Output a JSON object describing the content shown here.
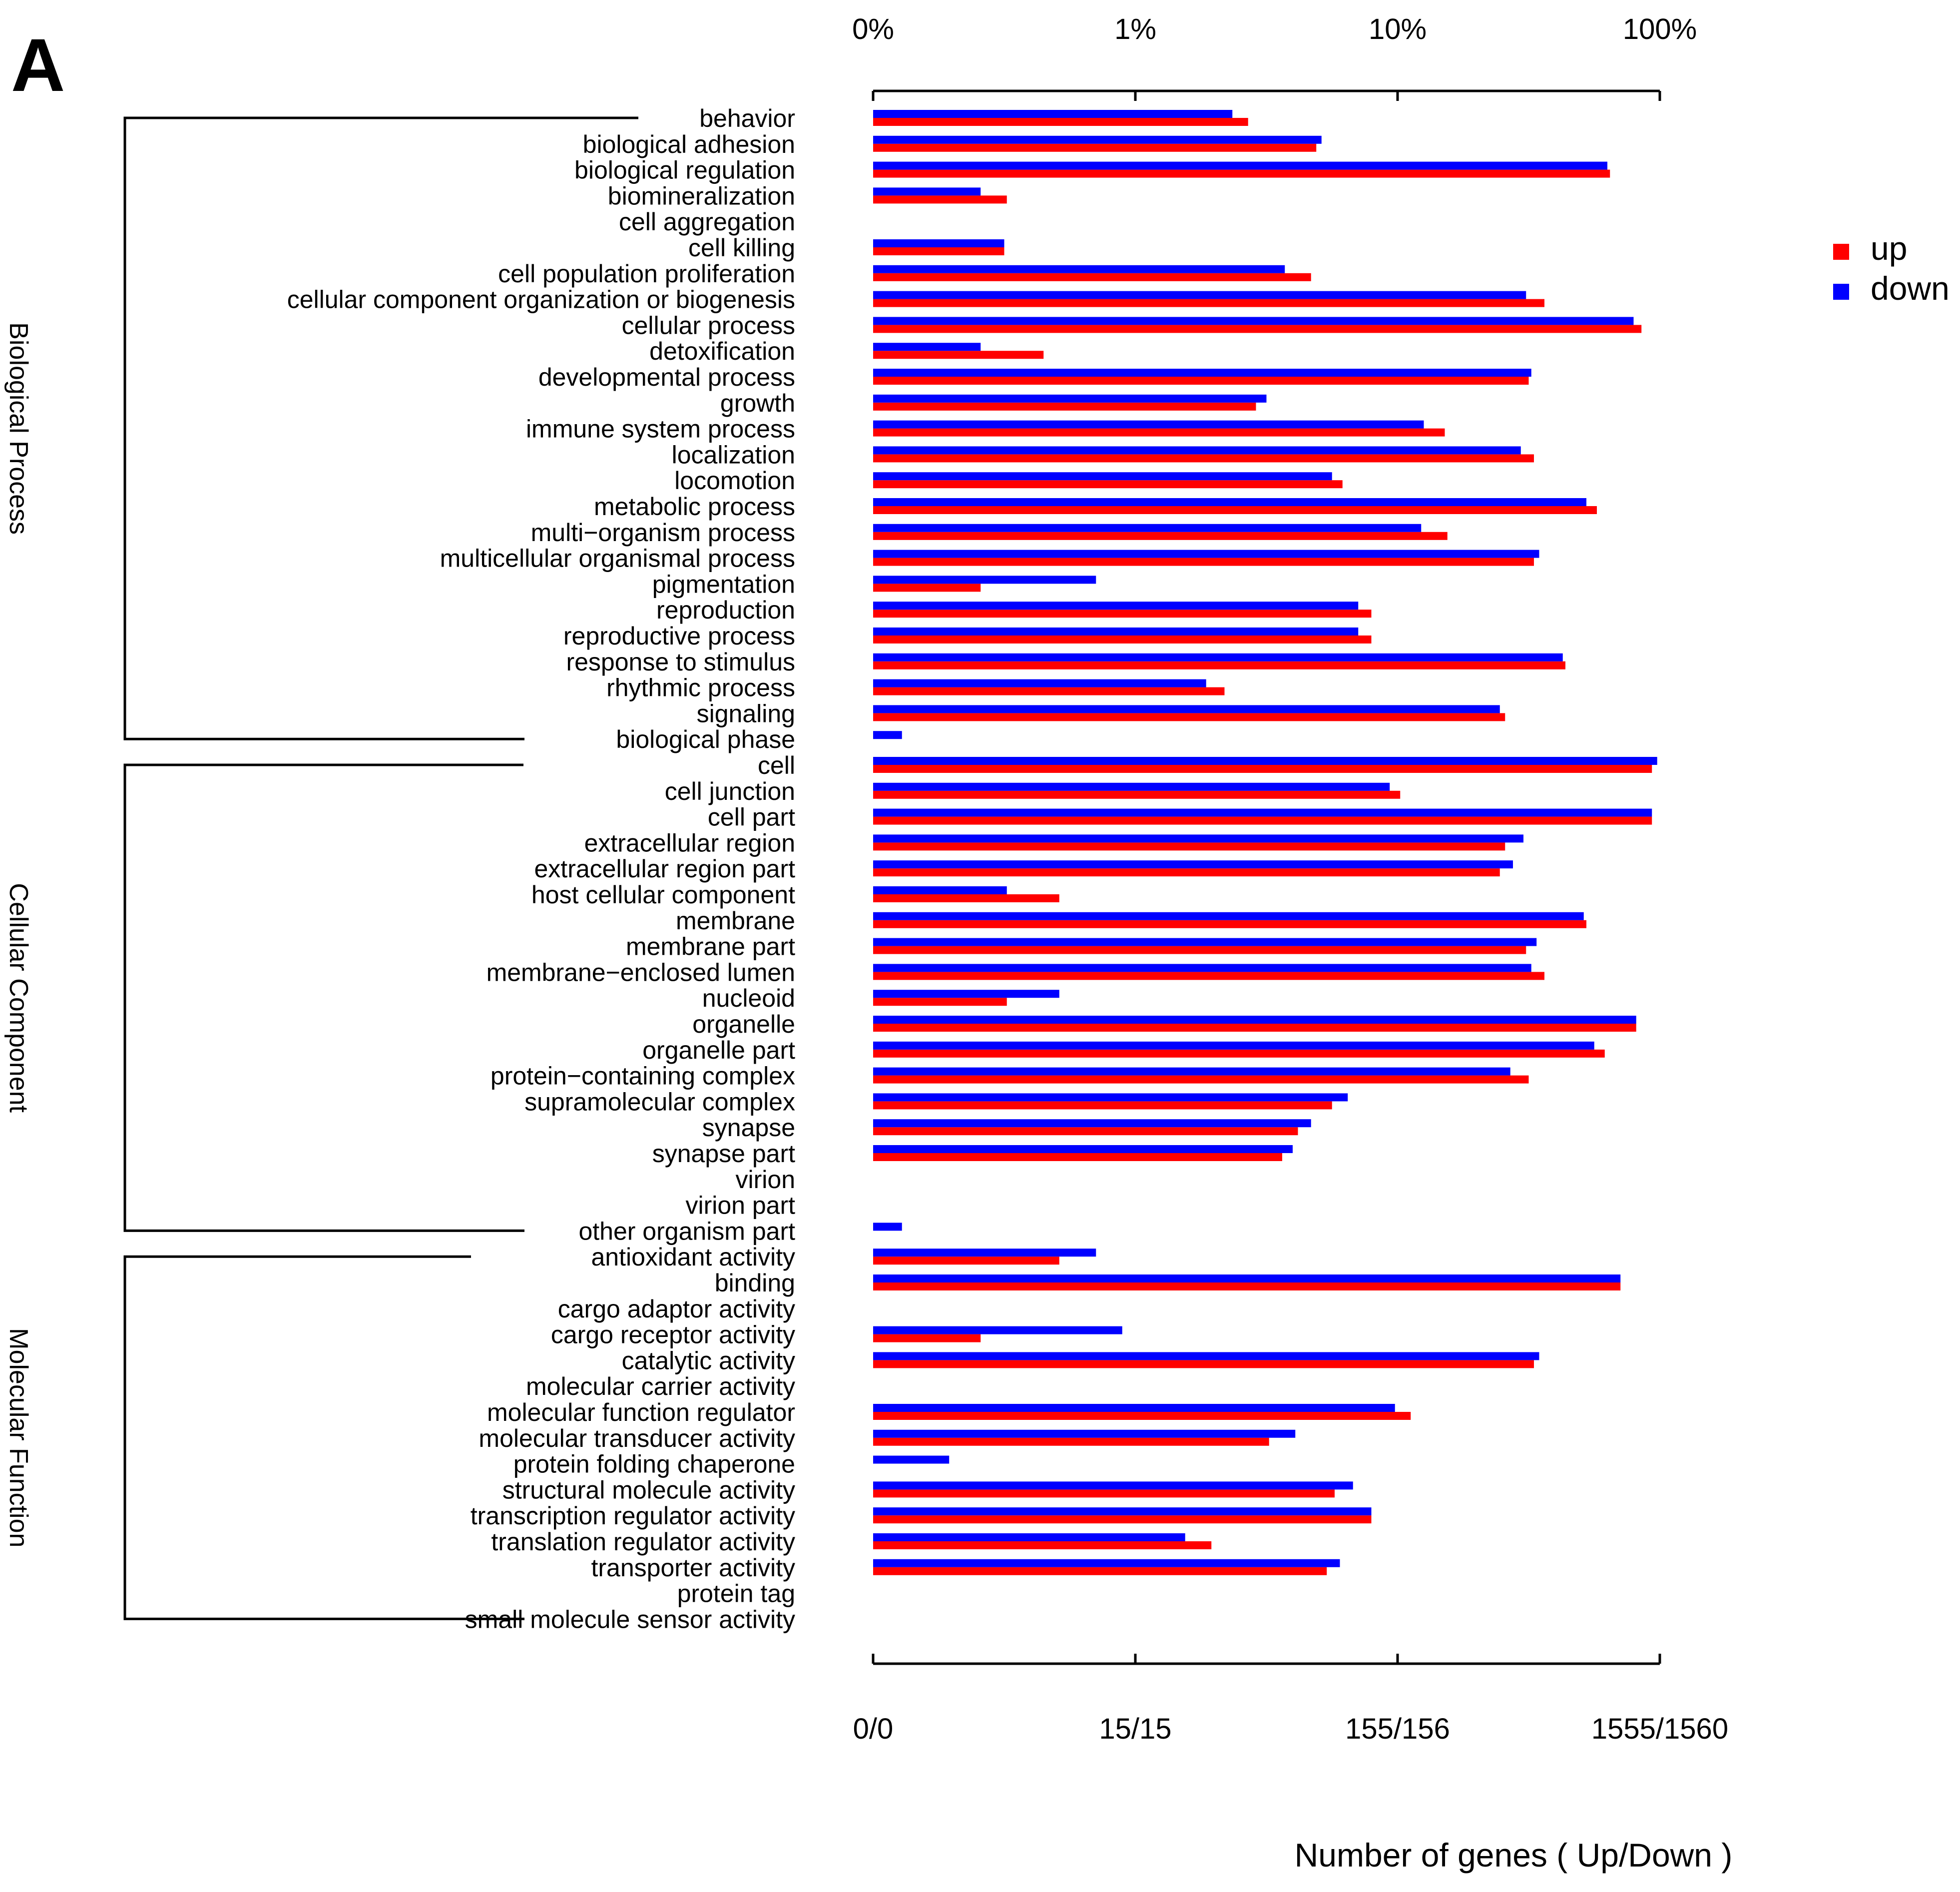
{
  "panel_label": "A",
  "chart_data": {
    "type": "bar",
    "orientation": "horizontal",
    "title": "",
    "xlabel": "Number of genes ( Up/Down )",
    "ylabel": "",
    "x_scale": "log",
    "top_axis_labels": [
      "0%",
      "1%",
      "10%",
      "100%"
    ],
    "bottom_axis_labels": [
      "0/0",
      "15/15",
      "155/156",
      "1555/1560"
    ],
    "legend": {
      "position": "right",
      "entries": [
        {
          "name": "up",
          "color": "#ff0000"
        },
        {
          "name": "down",
          "color": "#0000ff"
        }
      ]
    },
    "note": "Bar lengths are log10 percent of genes; decade index: 0 = 0.1%, 1 = 1%, 2 = 10%, 3 = 100%.",
    "groups": [
      {
        "name": "Biological Process",
        "categories": [
          "behavior",
          "biological adhesion",
          "biological regulation",
          "biomineralization",
          "cell aggregation",
          "cell killing",
          "cell population proliferation",
          "cellular component organization or biogenesis",
          "cellular process",
          "detoxification",
          "developmental process",
          "growth",
          "immune system process",
          "localization",
          "locomotion",
          "metabolic process",
          "multi−organism process",
          "multicellular organismal process",
          "pigmentation",
          "reproduction",
          "reproductive process",
          "response to stimulus",
          "rhythmic process",
          "signaling",
          "biological phase"
        ]
      },
      {
        "name": "Cellular Component",
        "categories": [
          "cell",
          "cell junction",
          "cell part",
          "extracellular region",
          "extracellular region part",
          "host cellular component",
          "membrane",
          "membrane part",
          "membrane−enclosed lumen",
          "nucleoid",
          "organelle",
          "organelle part",
          "protein−containing complex",
          "supramolecular complex",
          "synapse",
          "synapse part",
          "virion",
          "virion part",
          "other organism part"
        ]
      },
      {
        "name": "Molecular Function",
        "categories": [
          "antioxidant activity",
          "binding",
          "cargo adaptor activity",
          "cargo receptor activity",
          "catalytic activity",
          "molecular carrier activity",
          "molecular function regulator",
          "molecular transducer activity",
          "protein folding chaperone",
          "structural molecule activity",
          "transcription regulator activity",
          "translation regulator activity",
          "transporter activity",
          "protein tag",
          "small molecule sensor activity"
        ]
      }
    ],
    "series": [
      {
        "name": "up",
        "color": "#ff0000",
        "values": [
          1.43,
          1.69,
          2.81,
          0.51,
          null,
          0.5,
          1.67,
          2.56,
          2.93,
          0.65,
          2.5,
          1.46,
          2.18,
          2.52,
          1.79,
          2.76,
          2.19,
          2.52,
          0.41,
          1.9,
          1.9,
          2.64,
          1.34,
          2.41,
          null,
          2.97,
          2.01,
          2.97,
          2.41,
          2.39,
          0.71,
          2.72,
          2.49,
          2.56,
          0.51,
          2.91,
          2.79,
          2.5,
          1.75,
          1.62,
          1.56,
          null,
          null,
          null,
          0.71,
          2.85,
          null,
          0.41,
          2.52,
          null,
          2.05,
          1.51,
          null,
          1.76,
          1.9,
          1.29,
          1.73,
          null,
          null
        ]
      },
      {
        "name": "down",
        "color": "#0000ff",
        "values": [
          1.37,
          1.71,
          2.8,
          0.41,
          null,
          0.5,
          1.57,
          2.49,
          2.9,
          0.41,
          2.51,
          1.5,
          2.1,
          2.47,
          1.75,
          2.72,
          2.09,
          2.54,
          0.85,
          1.85,
          1.85,
          2.63,
          1.27,
          2.39,
          0.11,
          2.99,
          1.97,
          2.97,
          2.48,
          2.44,
          0.51,
          2.71,
          2.53,
          2.51,
          0.71,
          2.91,
          2.75,
          2.43,
          1.81,
          1.67,
          1.6,
          null,
          null,
          0.11,
          0.85,
          2.85,
          null,
          0.95,
          2.54,
          null,
          1.99,
          1.61,
          0.29,
          1.83,
          1.9,
          1.19,
          1.78,
          null,
          null
        ]
      }
    ]
  }
}
